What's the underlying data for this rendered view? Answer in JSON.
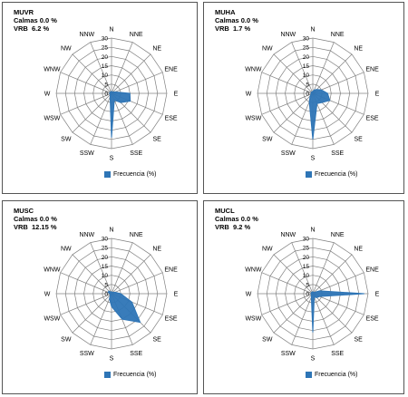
{
  "chart_data": [
    {
      "type": "radar",
      "station": "MUVR",
      "calmas": "Calmas 0.0 %",
      "vrb": "VRB  6.2 %",
      "directions": [
        "N",
        "NNE",
        "NE",
        "ENE",
        "E",
        "ESE",
        "SE",
        "SSE",
        "S",
        "SSW",
        "SW",
        "WSW",
        "W",
        "WNW",
        "NW",
        "NNW"
      ],
      "radial_ticks": [
        0,
        5,
        10,
        15,
        20,
        25,
        30
      ],
      "rmax": 30,
      "series": [
        {
          "name": "Frecuencia (%)",
          "values": [
            1,
            1,
            1,
            2,
            10,
            11,
            7,
            4,
            24,
            2,
            1,
            1,
            1,
            1,
            1,
            1
          ]
        }
      ]
    },
    {
      "type": "radar",
      "station": "MUHA",
      "calmas": "Calmas 0.0 %",
      "vrb": "VRB  1.7 %",
      "directions": [
        "N",
        "NNE",
        "NE",
        "ENE",
        "E",
        "ESE",
        "SE",
        "SSE",
        "S",
        "SSW",
        "SW",
        "WSW",
        "W",
        "WNW",
        "NW",
        "NNW"
      ],
      "radial_ticks": [
        0,
        5,
        10,
        15,
        20,
        25,
        30
      ],
      "rmax": 30,
      "series": [
        {
          "name": "Frecuencia (%)",
          "values": [
            1,
            2,
            3,
            5,
            8,
            10,
            7,
            6,
            25,
            5,
            2,
            1,
            1,
            1,
            1,
            1
          ]
        }
      ]
    },
    {
      "type": "radar",
      "station": "MUSC",
      "calmas": "Calmas 0.0 %",
      "vrb": "VRB  12.15 %",
      "directions": [
        "N",
        "NNE",
        "NE",
        "ENE",
        "E",
        "ESE",
        "SE",
        "SSE",
        "S",
        "SSW",
        "SW",
        "WSW",
        "W",
        "WNW",
        "NW",
        "NNW"
      ],
      "radial_ticks": [
        0,
        5,
        10,
        15,
        20,
        25,
        30
      ],
      "rmax": 30,
      "series": [
        {
          "name": "Frecuencia (%)",
          "values": [
            1,
            1,
            1,
            2,
            5,
            12,
            22,
            15,
            7,
            3,
            1,
            1,
            1,
            2,
            2,
            1
          ]
        }
      ]
    },
    {
      "type": "radar",
      "station": "MUCL",
      "calmas": "Calmas 0.0 %",
      "vrb": "VRB  9.2 %",
      "directions": [
        "N",
        "NNE",
        "NE",
        "ENE",
        "E",
        "ESE",
        "SE",
        "SSE",
        "S",
        "SSW",
        "SW",
        "WSW",
        "W",
        "WNW",
        "NW",
        "NNW"
      ],
      "radial_ticks": [
        0,
        5,
        10,
        15,
        20,
        25,
        30
      ],
      "rmax": 30,
      "series": [
        {
          "name": "Frecuencia (%)",
          "values": [
            1,
            1,
            1,
            4,
            28,
            4,
            3,
            2,
            21,
            2,
            1,
            1,
            1,
            1,
            1,
            1
          ]
        }
      ]
    }
  ],
  "colors": {
    "series": "#2e75b6",
    "grid": "#808080"
  }
}
